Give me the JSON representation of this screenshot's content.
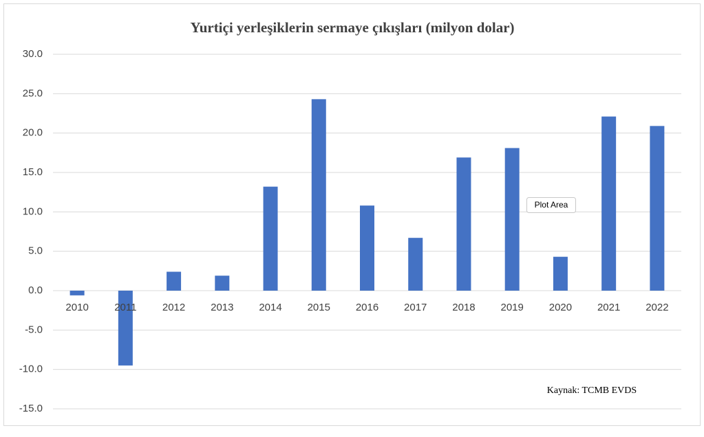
{
  "chart_data": {
    "type": "bar",
    "title": "Yurtiçi yerleşiklerin sermaye çıkışları (milyon dolar)",
    "categories": [
      "2010",
      "2011",
      "2012",
      "2013",
      "2014",
      "2015",
      "2016",
      "2017",
      "2018",
      "2019",
      "2020",
      "2021",
      "2022"
    ],
    "values": [
      -0.6,
      -9.5,
      2.4,
      1.9,
      13.2,
      24.3,
      10.8,
      6.7,
      16.9,
      18.1,
      4.3,
      22.1,
      20.9
    ],
    "color": "#4472c4",
    "ylim": [
      -15,
      30
    ],
    "yticks": [
      {
        "value": -15,
        "label": "-15.0"
      },
      {
        "value": -10,
        "label": "-10.0"
      },
      {
        "value": -5,
        "label": "-5.0"
      },
      {
        "value": 0,
        "label": "0.0"
      },
      {
        "value": 5,
        "label": "5.0"
      },
      {
        "value": 10,
        "label": "10.0"
      },
      {
        "value": 15,
        "label": "15.0"
      },
      {
        "value": 20,
        "label": "20.0"
      },
      {
        "value": 25,
        "label": "25.0"
      },
      {
        "value": 30,
        "label": "30.0"
      }
    ],
    "grid": true,
    "source": "Kaynak: TCMB EVDS",
    "tooltip": "Plot Area"
  }
}
